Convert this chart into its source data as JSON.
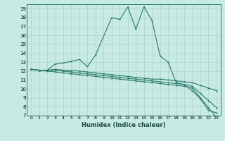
{
  "xlabel": "Humidex (Indice chaleur)",
  "ylabel": "",
  "bg_color": "#c8eae4",
  "line_color": "#2a7a6a",
  "grid_color": "#aed4cc",
  "xlim": [
    -0.5,
    23.5
  ],
  "ylim": [
    7,
    19.5
  ],
  "xticks": [
    0,
    1,
    2,
    3,
    4,
    5,
    6,
    7,
    8,
    9,
    10,
    11,
    12,
    13,
    14,
    15,
    16,
    17,
    18,
    19,
    20,
    21,
    22,
    23
  ],
  "yticks": [
    7,
    8,
    9,
    10,
    11,
    12,
    13,
    14,
    15,
    16,
    17,
    18,
    19
  ],
  "series": [
    {
      "x": [
        0,
        1,
        2,
        3,
        4,
        5,
        6,
        7,
        8,
        10,
        11,
        12,
        13,
        14,
        15,
        16,
        17,
        18,
        19,
        20,
        21,
        22,
        23
      ],
      "y": [
        12.2,
        12.1,
        12.1,
        12.8,
        12.9,
        13.1,
        13.3,
        12.5,
        13.8,
        18.0,
        17.8,
        19.2,
        16.7,
        19.2,
        17.7,
        13.7,
        13.0,
        10.7,
        10.5,
        9.8,
        8.9,
        7.6,
        7.3
      ]
    },
    {
      "x": [
        0,
        1,
        2,
        3,
        4,
        5,
        6,
        7,
        8,
        9,
        10,
        11,
        12,
        13,
        14,
        15,
        16,
        17,
        18,
        19,
        20,
        21,
        22,
        23
      ],
      "y": [
        12.2,
        12.1,
        12.1,
        12.2,
        12.1,
        12.1,
        12.0,
        11.9,
        11.8,
        11.7,
        11.6,
        11.5,
        11.4,
        11.3,
        11.2,
        11.1,
        11.1,
        11.0,
        10.9,
        10.8,
        10.7,
        10.4,
        10.1,
        9.8
      ]
    },
    {
      "x": [
        0,
        1,
        2,
        3,
        4,
        5,
        6,
        7,
        8,
        9,
        10,
        11,
        12,
        13,
        14,
        15,
        16,
        17,
        18,
        19,
        20,
        21,
        22,
        23
      ],
      "y": [
        12.2,
        12.1,
        12.1,
        12.1,
        12.0,
        11.9,
        11.8,
        11.7,
        11.6,
        11.5,
        11.4,
        11.3,
        11.2,
        11.1,
        11.0,
        10.9,
        10.8,
        10.7,
        10.6,
        10.5,
        10.3,
        9.5,
        8.7,
        7.9
      ]
    },
    {
      "x": [
        0,
        1,
        2,
        3,
        4,
        5,
        6,
        7,
        8,
        9,
        10,
        11,
        12,
        13,
        14,
        15,
        16,
        17,
        18,
        19,
        20,
        21,
        22,
        23
      ],
      "y": [
        12.2,
        12.1,
        12.0,
        11.9,
        11.8,
        11.7,
        11.6,
        11.5,
        11.4,
        11.3,
        11.2,
        11.1,
        11.0,
        10.9,
        10.8,
        10.7,
        10.6,
        10.5,
        10.4,
        10.3,
        10.1,
        9.0,
        7.9,
        6.8
      ]
    }
  ]
}
